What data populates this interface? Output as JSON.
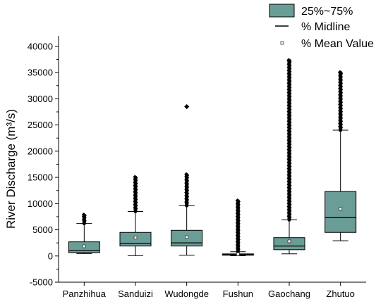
{
  "chart_data": {
    "type": "box",
    "ylabel": "River Discharge (m³/s)",
    "ylim": [
      -5000,
      42000
    ],
    "yticks": [
      -5000,
      0,
      5000,
      10000,
      15000,
      20000,
      25000,
      30000,
      35000,
      40000
    ],
    "ytick_labels": [
      "-5000",
      "0",
      "5000",
      "10000",
      "15000",
      "20000",
      "25000",
      "30000",
      "35000",
      "40000"
    ],
    "categories": [
      "Panzhihua",
      "Sanduizi",
      "Wudongde",
      "Fushun",
      "Gaochang",
      "Zhutuo"
    ],
    "box_color": "#6a9d96",
    "grid": false,
    "legend_position": "top-right",
    "legend": [
      {
        "kind": "box",
        "label": "25%~75%"
      },
      {
        "kind": "line",
        "label": "% Midline"
      },
      {
        "kind": "mean",
        "label": "% Mean Value"
      }
    ],
    "boxes": [
      {
        "name": "Panzhihua",
        "whisker_low": 450,
        "q1": 650,
        "median": 1100,
        "q3": 2700,
        "whisker_high": 6200,
        "mean": 1850,
        "outlier_top": 7800
      },
      {
        "name": "Sanduizi",
        "whisker_low": 50,
        "q1": 1900,
        "median": 2400,
        "q3": 4500,
        "whisker_high": 8500,
        "mean": 3500,
        "outlier_top": 15000
      },
      {
        "name": "Wudongde",
        "whisker_low": 150,
        "q1": 1900,
        "median": 2500,
        "q3": 4900,
        "whisker_high": 9600,
        "mean": 3600,
        "outlier_top": 15500,
        "extra_outliers": [
          28500
        ]
      },
      {
        "name": "Fushun",
        "whisker_low": 50,
        "q1": 150,
        "median": 250,
        "q3": 400,
        "whisker_high": 800,
        "mean": 350,
        "outlier_top": 10500
      },
      {
        "name": "Gaochang",
        "whisker_low": 400,
        "q1": 1200,
        "median": 1900,
        "q3": 3500,
        "whisker_high": 6900,
        "mean": 2800,
        "outlier_top": 37300
      },
      {
        "name": "Zhutuo",
        "whisker_low": 2900,
        "q1": 4500,
        "median": 7300,
        "q3": 12300,
        "whisker_high": 24000,
        "mean": 9000,
        "outlier_top": 35000
      }
    ]
  }
}
